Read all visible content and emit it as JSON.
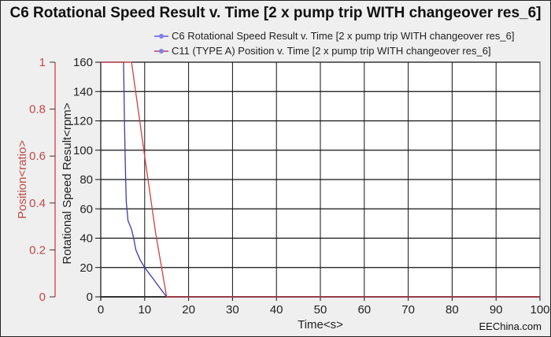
{
  "chart_data": {
    "type": "line",
    "title": "C6 Rotational Speed Result v. Time [2 x pump trip WITH changeover res_6]",
    "xlabel": "Time<s>",
    "ylabel": "Rotational Speed Result<rpm>",
    "y2label": "Position<ratio>",
    "xlim": [
      0,
      100
    ],
    "ylim": [
      0,
      160
    ],
    "y2lim": [
      0,
      1
    ],
    "xticks": [
      "0",
      "10",
      "20",
      "30",
      "40",
      "50",
      "60",
      "70",
      "80",
      "90",
      "100"
    ],
    "yticks": [
      "0",
      "20",
      "40",
      "60",
      "80",
      "100",
      "120",
      "140",
      "160"
    ],
    "y2ticks": [
      "0",
      "0.2",
      "0.4",
      "0.6",
      "0.8",
      "1"
    ],
    "grid": true,
    "legend": "top-right",
    "series": [
      {
        "name": "C6 Rotational Speed Result v. Time [2 x pump trip WITH changeover res_6]",
        "axis": "left",
        "color": "#3a3ab0",
        "x": [
          0,
          5.2,
          5.4,
          5.6,
          5.8,
          6.2,
          7,
          7.5,
          8,
          9,
          10,
          11,
          12,
          13,
          14,
          15,
          100
        ],
        "y": [
          160,
          160,
          120,
          90,
          65,
          52,
          46,
          40,
          32,
          25,
          20,
          16,
          12,
          8,
          4,
          0,
          0
        ]
      },
      {
        "name": "C11 (TYPE A) Position v. Time [2 x pump trip WITH changeover res_6]",
        "axis": "right",
        "color": "#d04040",
        "x": [
          0,
          7,
          10,
          12.5,
          15,
          100
        ],
        "y": [
          1,
          1,
          0.6,
          0.27,
          0,
          0
        ]
      }
    ],
    "watermark": "EEChina.com"
  }
}
